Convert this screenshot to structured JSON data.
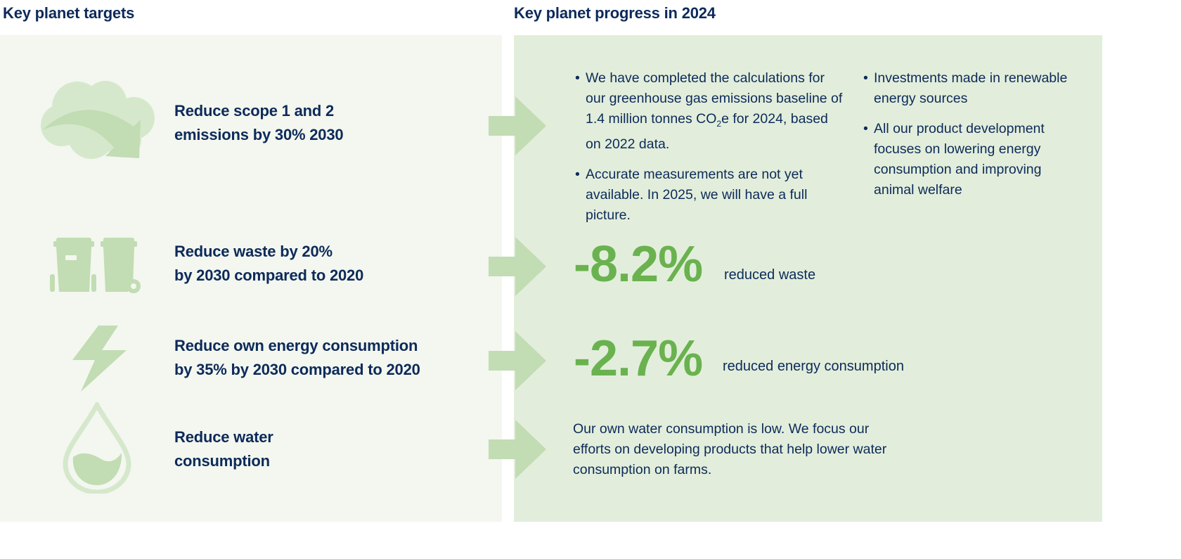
{
  "left_header": "Key planet targets",
  "right_header": "Key planet progress in 2024",
  "colors": {
    "navy": "#0d2a5a",
    "accent_green": "#6ab24f",
    "icon_green": "#c2dcb3",
    "left_bg": "#f3f7ef",
    "right_bg": "#e2eedb"
  },
  "targets": [
    {
      "icon": "cloud-arrow-icon",
      "line1": "Reduce scope 1 and 2",
      "line2": "emissions by 30% 2030"
    },
    {
      "icon": "waste-bins-icon",
      "line1": "Reduce waste by 20%",
      "line2": "by 2030 compared to 2020"
    },
    {
      "icon": "lightning-icon",
      "line1": "Reduce own energy consumption",
      "line2": "by 35% by 2030 compared to 2020"
    },
    {
      "icon": "water-drop-icon",
      "line1": "Reduce water",
      "line2": "consumption"
    }
  ],
  "progress": {
    "emissions": {
      "col1": [
        {
          "pre": "We have completed the calculations for our greenhouse gas emissions baseline of 1.4 million tonnes CO",
          "sub": "2",
          "post": "e for 2024, based on 2022 data."
        },
        {
          "text": "Accurate measurements are not yet available. In 2025, we will have a full picture."
        }
      ],
      "col2": [
        "Investments made in renewable energy sources",
        "All our product development focuses on lowering energy consumption and improving animal welfare"
      ]
    },
    "waste": {
      "value": "-8.2%",
      "label": "reduced waste"
    },
    "energy": {
      "value": "-2.7%",
      "label": "reduced energy consumption"
    },
    "water": {
      "text": "Our own water consumption is low. We focus our efforts on developing products that help lower water consumption on farms."
    }
  }
}
